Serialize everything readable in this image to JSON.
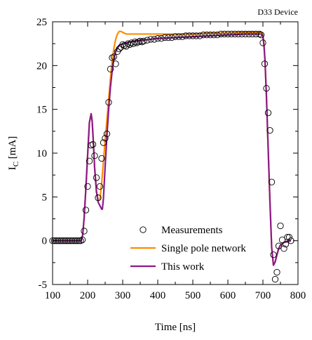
{
  "chart_data": {
    "type": "line",
    "title": "D33 Device",
    "xlabel": "Time [ns]",
    "ylabel": "I",
    "ylabel_subscript": "C",
    "ylabel_unit": " [mA]",
    "xlim": [
      100,
      800
    ],
    "ylim": [
      -5,
      25
    ],
    "xticks": [
      100,
      200,
      300,
      400,
      500,
      600,
      700,
      800
    ],
    "yticks": [
      -5,
      0,
      5,
      10,
      15,
      20,
      25
    ],
    "legend_position": "lower-right",
    "series": [
      {
        "name": "Measurements",
        "kind": "scatter",
        "marker": "open-circle",
        "color": "#000000",
        "x": [
          100,
          105,
          110,
          115,
          120,
          125,
          130,
          135,
          140,
          145,
          150,
          155,
          160,
          165,
          170,
          175,
          180,
          185,
          190,
          195,
          200,
          205,
          210,
          215,
          220,
          225,
          230,
          235,
          240,
          245,
          250,
          255,
          260,
          265,
          270,
          275,
          280,
          285,
          290,
          295,
          300,
          305,
          310,
          315,
          320,
          325,
          330,
          335,
          340,
          345,
          350,
          355,
          360,
          370,
          380,
          390,
          400,
          410,
          420,
          430,
          440,
          450,
          460,
          470,
          480,
          490,
          500,
          510,
          520,
          530,
          540,
          550,
          560,
          570,
          580,
          590,
          600,
          610,
          620,
          630,
          640,
          650,
          660,
          670,
          680,
          690,
          695,
          700,
          705,
          710,
          715,
          720,
          725,
          730,
          735,
          740,
          745,
          750,
          755,
          760,
          765,
          770,
          775,
          780
        ],
        "y": [
          0,
          0,
          0,
          0,
          0,
          0,
          0,
          0,
          0,
          0,
          0,
          0,
          0,
          0,
          0,
          0,
          0,
          0.1,
          1.1,
          3.5,
          6.2,
          9.1,
          10.9,
          11.0,
          9.7,
          7.2,
          4.9,
          6.2,
          9.4,
          11.2,
          11.7,
          12.2,
          15.8,
          19.6,
          20.9,
          21.0,
          20.2,
          21.6,
          21.9,
          22.1,
          22.4,
          22.3,
          22.2,
          22.5,
          22.4,
          22.6,
          22.5,
          22.7,
          22.6,
          22.7,
          22.8,
          22.7,
          22.8,
          22.9,
          23.0,
          23.0,
          23.1,
          23.1,
          23.2,
          23.2,
          23.2,
          23.3,
          23.3,
          23.3,
          23.4,
          23.4,
          23.4,
          23.4,
          23.4,
          23.5,
          23.5,
          23.5,
          23.5,
          23.5,
          23.6,
          23.6,
          23.6,
          23.6,
          23.6,
          23.6,
          23.6,
          23.6,
          23.6,
          23.6,
          23.6,
          23.6,
          23.5,
          22.6,
          20.2,
          17.4,
          14.6,
          12.6,
          6.7,
          -1.6,
          -4.4,
          -3.6,
          -0.6,
          1.7,
          0.1,
          -0.9,
          -0.4,
          0.4,
          0.4,
          0.0
        ]
      },
      {
        "name": "Single pole network",
        "kind": "line",
        "color": "#ff8c00",
        "x": [
          100,
          180,
          183,
          186,
          190,
          195,
          200,
          205,
          210,
          213,
          216,
          220,
          225,
          230,
          235,
          240,
          245,
          250,
          255,
          260,
          265,
          270,
          275,
          280,
          285,
          290,
          295,
          300,
          305,
          310,
          320,
          340,
          360,
          400,
          450,
          500,
          550,
          600,
          650,
          680,
          690,
          695,
          700,
          703,
          706,
          710,
          715,
          720,
          725,
          730,
          735,
          740,
          745,
          750,
          760,
          770,
          780
        ],
        "y": [
          0,
          0,
          0.2,
          0.7,
          2.6,
          6.0,
          9.8,
          13.5,
          14.5,
          13.6,
          11.5,
          8.3,
          5.8,
          4.6,
          4.7,
          6.6,
          9.0,
          11.5,
          13.8,
          16.2,
          18.5,
          20.5,
          22.0,
          23.0,
          23.6,
          23.9,
          23.9,
          23.8,
          23.7,
          23.6,
          23.6,
          23.6,
          23.6,
          23.6,
          23.6,
          23.6,
          23.7,
          23.7,
          23.8,
          23.8,
          23.8,
          23.8,
          23.5,
          22.5,
          20.5,
          16.5,
          10.5,
          4.5,
          -0.8,
          -2.8,
          -2.4,
          -1.6,
          -0.9,
          -0.5,
          -0.2,
          -0.1,
          0
        ]
      },
      {
        "name": "This work",
        "kind": "line",
        "color": "#8b1a89",
        "x": [
          100,
          180,
          183,
          186,
          190,
          195,
          200,
          205,
          210,
          213,
          216,
          220,
          225,
          230,
          235,
          240,
          242,
          245,
          250,
          255,
          260,
          265,
          270,
          275,
          280,
          285,
          290,
          295,
          300,
          310,
          320,
          340,
          360,
          400,
          450,
          500,
          550,
          600,
          650,
          680,
          690,
          695,
          700,
          703,
          706,
          710,
          715,
          720,
          725,
          730,
          735,
          740,
          745,
          750,
          760,
          770,
          780
        ],
        "y": [
          0,
          0,
          0.2,
          0.7,
          2.6,
          6.0,
          9.8,
          13.5,
          14.5,
          13.6,
          11.5,
          8.3,
          5.6,
          4.4,
          4.0,
          3.6,
          3.6,
          4.8,
          8.5,
          12.0,
          15.0,
          17.5,
          19.4,
          20.8,
          21.6,
          22.0,
          22.3,
          22.4,
          22.5,
          22.6,
          22.7,
          22.8,
          22.9,
          23.1,
          23.2,
          23.3,
          23.4,
          23.5,
          23.6,
          23.6,
          23.6,
          23.6,
          23.3,
          22.3,
          20.5,
          16.5,
          10.5,
          4.5,
          -0.8,
          -2.8,
          -2.4,
          -1.6,
          -0.9,
          -0.5,
          -0.2,
          -0.1,
          0
        ]
      }
    ]
  }
}
